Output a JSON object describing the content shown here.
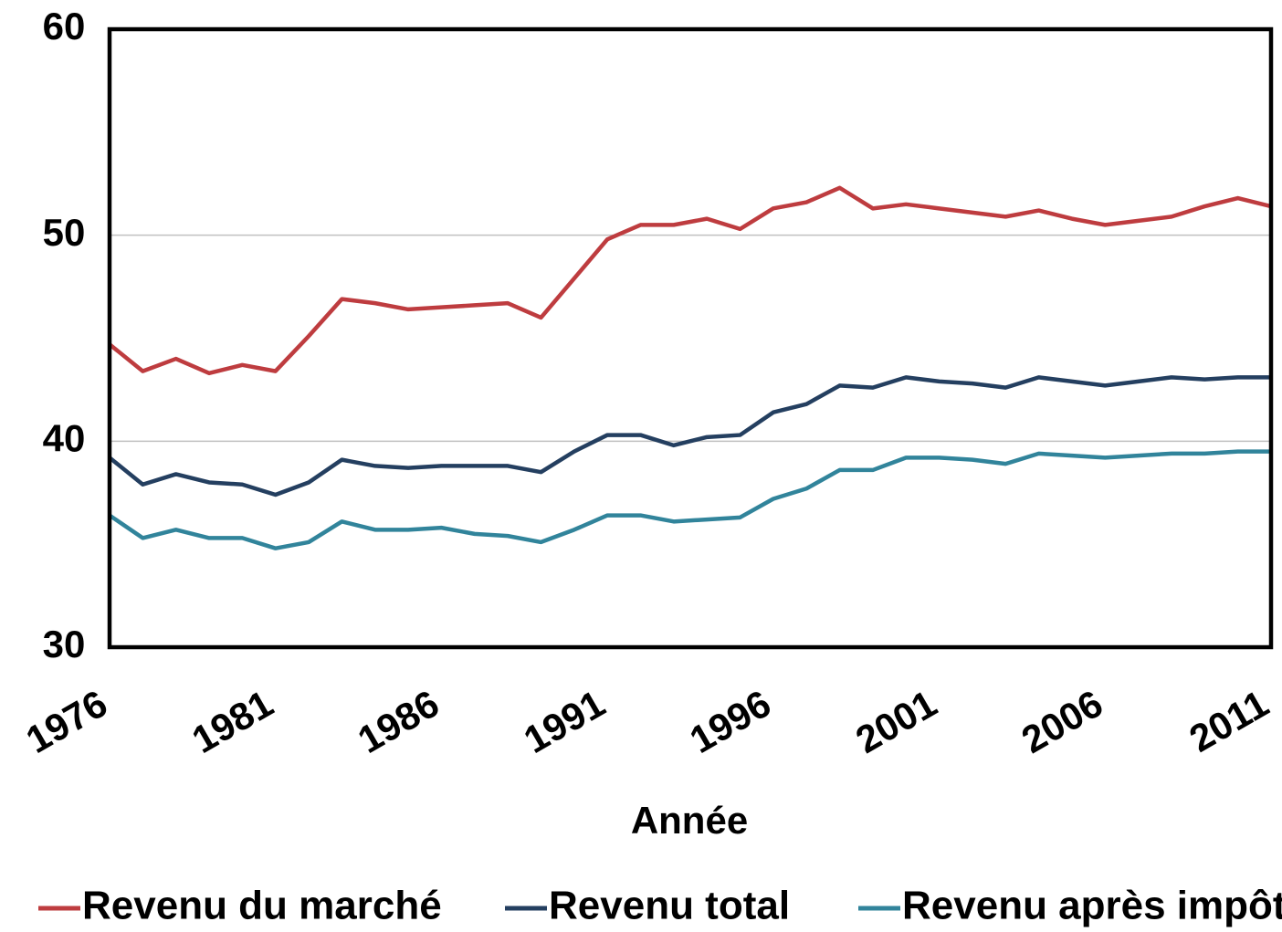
{
  "chart_data": {
    "type": "line",
    "x_label": "Année",
    "x": [
      1976,
      1977,
      1978,
      1979,
      1980,
      1981,
      1982,
      1983,
      1984,
      1985,
      1986,
      1987,
      1988,
      1989,
      1990,
      1991,
      1992,
      1993,
      1994,
      1995,
      1996,
      1997,
      1998,
      1999,
      2000,
      2001,
      2002,
      2003,
      2004,
      2005,
      2006,
      2007,
      2008,
      2009,
      2010,
      2011
    ],
    "series": [
      {
        "name": "Revenu du marché",
        "color": "#be3c3f",
        "values": [
          44.7,
          43.4,
          44.0,
          43.3,
          43.7,
          43.4,
          45.1,
          46.9,
          46.7,
          46.4,
          46.5,
          46.6,
          46.7,
          46.0,
          47.9,
          49.8,
          50.5,
          50.5,
          50.8,
          50.3,
          51.3,
          51.6,
          52.3,
          51.3,
          51.5,
          51.3,
          51.1,
          50.9,
          51.2,
          50.8,
          50.5,
          50.7,
          50.9,
          51.4,
          51.8,
          51.4
        ]
      },
      {
        "name": "Revenu total",
        "color": "#243f60",
        "values": [
          39.2,
          37.9,
          38.4,
          38.0,
          37.9,
          37.4,
          38.0,
          39.1,
          38.8,
          38.7,
          38.8,
          38.8,
          38.8,
          38.5,
          39.5,
          40.3,
          40.3,
          39.8,
          40.2,
          40.3,
          41.4,
          41.8,
          42.7,
          42.6,
          43.1,
          42.9,
          42.8,
          42.6,
          43.1,
          42.9,
          42.7,
          42.9,
          43.1,
          43.0,
          43.1,
          43.1
        ]
      },
      {
        "name": "Revenu après impôt",
        "color": "#31849b",
        "values": [
          36.4,
          35.3,
          35.7,
          35.3,
          35.3,
          34.8,
          35.1,
          36.1,
          35.7,
          35.7,
          35.8,
          35.5,
          35.4,
          35.1,
          35.7,
          36.4,
          36.4,
          36.1,
          36.2,
          36.3,
          37.2,
          37.7,
          38.6,
          38.6,
          39.2,
          39.2,
          39.1,
          38.9,
          39.4,
          39.3,
          39.2,
          39.3,
          39.4,
          39.4,
          39.5,
          39.5
        ]
      }
    ],
    "xlim": [
      1976,
      2011
    ],
    "xticks": [
      1976,
      1981,
      1986,
      1991,
      1996,
      2001,
      2006,
      2011
    ],
    "ylim": [
      30,
      60
    ],
    "yticks": [
      30,
      40,
      50,
      60
    ],
    "grid": true
  }
}
